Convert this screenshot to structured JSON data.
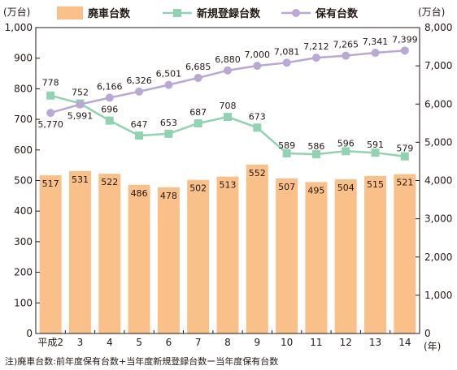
{
  "chart_data": {
    "type": "bar",
    "categories": [
      "平成2",
      "3",
      "4",
      "5",
      "6",
      "7",
      "8",
      "9",
      "10",
      "11",
      "12",
      "13",
      "14"
    ],
    "x_unit": "(年)",
    "left_axis": {
      "unit": "(万台)",
      "ylim": [
        0,
        1000
      ],
      "ticks": [
        0,
        100,
        200,
        300,
        400,
        500,
        600,
        700,
        800,
        900,
        1000
      ],
      "tick_labels": [
        "0",
        "100",
        "200",
        "300",
        "400",
        "500",
        "600",
        "700",
        "800",
        "900",
        "1,000"
      ]
    },
    "right_axis": {
      "unit": "(万台)",
      "ylim": [
        0,
        8000
      ],
      "ticks": [
        0,
        1000,
        2000,
        3000,
        4000,
        5000,
        6000,
        7000,
        8000
      ],
      "tick_labels": [
        "0",
        "1,000",
        "2,000",
        "3,000",
        "4,000",
        "5,000",
        "6,000",
        "7,000",
        "8,000"
      ]
    },
    "series": [
      {
        "name": "廃車台数",
        "type": "bar",
        "axis": "left",
        "color": "#f9c08a",
        "values": [
          517,
          531,
          522,
          486,
          478,
          502,
          513,
          552,
          507,
          495,
          504,
          515,
          521
        ],
        "labels": [
          "517",
          "531",
          "522",
          "486",
          "478",
          "502",
          "513",
          "552",
          "507",
          "495",
          "504",
          "515",
          "521"
        ]
      },
      {
        "name": "新規登録台数",
        "type": "line",
        "axis": "left",
        "color": "#8fd3b0",
        "marker": "square",
        "values": [
          778,
          752,
          696,
          647,
          653,
          687,
          708,
          673,
          589,
          586,
          596,
          591,
          579
        ],
        "labels": [
          "778",
          "752",
          "696",
          "647",
          "653",
          "687",
          "708",
          "673",
          "589",
          "586",
          "596",
          "591",
          "579"
        ]
      },
      {
        "name": "保有台数",
        "type": "line",
        "axis": "right",
        "color": "#b9a7d6",
        "marker": "circle",
        "values": [
          5770,
          5991,
          6166,
          6326,
          6501,
          6685,
          6880,
          7000,
          7081,
          7212,
          7265,
          7341,
          7399
        ],
        "labels": [
          "5,770",
          "5,991",
          "6,166",
          "6,326",
          "6,501",
          "6,685",
          "6,880",
          "7,000",
          "7,081",
          "7,212",
          "7,265",
          "7,341",
          "7,399"
        ]
      }
    ],
    "legend_position": "top",
    "grid": false
  },
  "note": "注)廃車台数:前年度保有台数+当年度新規登録台数ー当年度保有台数"
}
